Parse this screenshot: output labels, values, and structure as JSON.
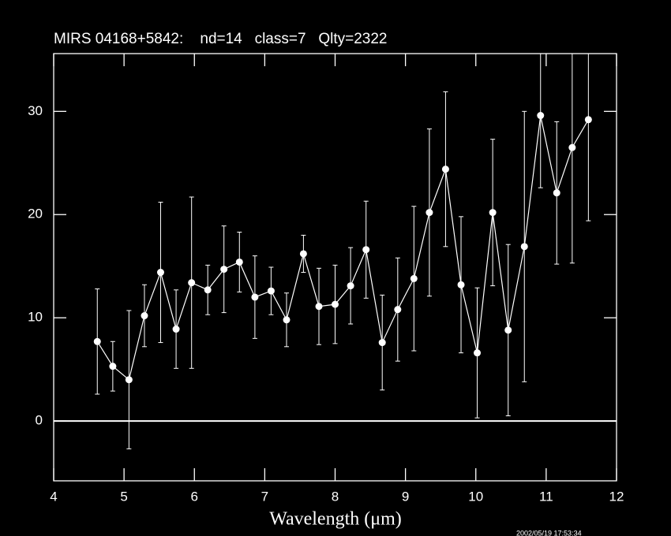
{
  "chart_data": {
    "type": "scatter",
    "title": "MIRS 04168+5842:    nd=14   class=7   Qlty=2322",
    "xlabel": "Wavelength (μm)",
    "timestamp": "2002/05/19 17:53:34",
    "color": "#ffffff",
    "connect": true,
    "reference_line": 0,
    "x": [
      4.62,
      4.84,
      5.07,
      5.29,
      5.52,
      5.74,
      5.96,
      6.19,
      6.42,
      6.64,
      6.86,
      7.09,
      7.31,
      7.55,
      7.77,
      8.0,
      8.22,
      8.44,
      8.67,
      8.89,
      9.12,
      9.34,
      9.57,
      9.79,
      10.02,
      10.24,
      10.46,
      10.69,
      10.92,
      11.15,
      11.37,
      11.6
    ],
    "values": [
      7.7,
      5.3,
      4.0,
      10.2,
      14.4,
      8.9,
      13.4,
      12.7,
      14.7,
      15.4,
      12.0,
      12.6,
      9.8,
      16.2,
      11.1,
      11.3,
      13.1,
      16.6,
      7.6,
      10.8,
      13.8,
      20.2,
      24.4,
      13.2,
      6.6,
      20.2,
      8.8,
      16.9,
      29.6,
      22.1,
      26.5,
      29.2
    ],
    "errors": [
      5.1,
      2.4,
      6.7,
      3.0,
      6.8,
      3.8,
      8.3,
      2.4,
      4.2,
      2.9,
      4.0,
      2.3,
      2.6,
      1.8,
      3.7,
      3.8,
      3.7,
      4.7,
      4.6,
      5.0,
      7.0,
      8.1,
      7.5,
      6.6,
      6.3,
      7.1,
      8.3,
      13.1,
      7.0,
      6.9,
      11.2,
      9.8
    ],
    "xlim": [
      4,
      12
    ],
    "xticks": [
      4,
      5,
      6,
      7,
      8,
      9,
      10,
      11,
      12
    ],
    "ylim": [
      -5.8,
      35.6
    ],
    "yticks": [
      0,
      10,
      20,
      30
    ]
  }
}
